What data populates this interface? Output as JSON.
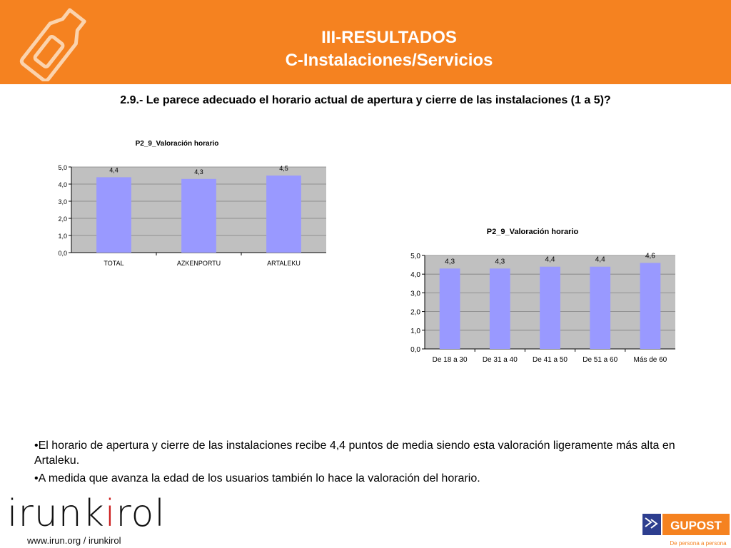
{
  "header": {
    "title_line1": "III-RESULTADOS",
    "title_line2": "C-Instalaciones/Servicios"
  },
  "question": "2.9.- Le parece adecuado el horario actual de apertura y cierre de las instalaciones (1 a 5)?",
  "chart_data": [
    {
      "type": "bar",
      "title": "P2_9_Valoración horario",
      "categories": [
        "TOTAL",
        "AZKENPORTU",
        "ARTALEKU"
      ],
      "values": [
        4.4,
        4.3,
        4.5
      ],
      "value_labels": [
        "4,4",
        "4,3",
        "4,5"
      ],
      "ylim": [
        0,
        5
      ],
      "yticks": [
        "0,0",
        "1,0",
        "2,0",
        "3,0",
        "4,0",
        "5,0"
      ],
      "xlabel": "",
      "ylabel": "",
      "grid": true,
      "bar_color": "#9999ff",
      "plot_background": "#c0c0c0"
    },
    {
      "type": "bar",
      "title": "P2_9_Valoración horario",
      "categories": [
        "De 18 a 30",
        "De 31 a 40",
        "De 41 a 50",
        "De 51 a 60",
        "Más de 60"
      ],
      "values": [
        4.3,
        4.3,
        4.4,
        4.4,
        4.6
      ],
      "value_labels": [
        "4,3",
        "4,3",
        "4,4",
        "4,4",
        "4,6"
      ],
      "ylim": [
        0,
        5
      ],
      "yticks": [
        "0,0",
        "1,0",
        "2,0",
        "3,0",
        "4,0",
        "5,0"
      ],
      "xlabel": "",
      "ylabel": "",
      "grid": true,
      "bar_color": "#9999ff",
      "plot_background": "#c0c0c0"
    }
  ],
  "bullets": [
    "•El horario de apertura y cierre de las instalaciones recibe 4,4 puntos de media siendo esta valoración ligeramente más alta en Artaleku.",
    "•A medida que avanza la edad de los usuarios también lo hace la valoración del horario."
  ],
  "footer": {
    "brand_part1": "irunk",
    "brand_accent": "i",
    "brand_part2": "rol",
    "website": "www.irun.org / irunkirol",
    "partner_logo": "GUPOST",
    "partner_slogan": "De persona a persona"
  },
  "colors": {
    "header_bg": "#f58220",
    "brand_accent": "#cc1e1e",
    "bar": "#9999ff"
  },
  "icons": [
    "bottle-logo-icon",
    "gupost-logo-icon"
  ]
}
